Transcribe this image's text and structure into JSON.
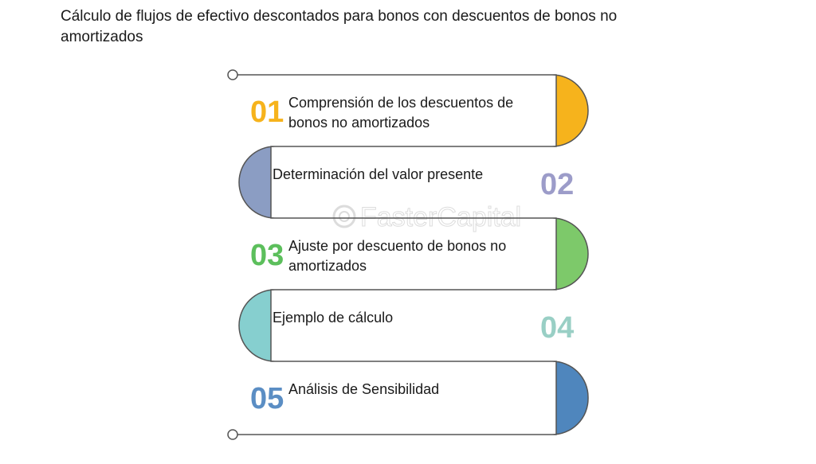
{
  "title": "Cálculo de flujos de efectivo descontados para bonos con descuentos de bonos no amortizados",
  "watermark": "FasterCapital",
  "steps": [
    {
      "number": "01",
      "lines": [
        "Comprensión de los descuentos de",
        "bonos no amortizados"
      ],
      "color": "#F6B31C"
    },
    {
      "number": "02",
      "lines": [
        "Determinación del valor presente"
      ],
      "color": "#8B9DC3"
    },
    {
      "number": "03",
      "lines": [
        "Ajuste por descuento de bonos no",
        "amortizados"
      ],
      "color": "#7DC96A"
    },
    {
      "number": "04",
      "lines": [
        "Ejemplo de cálculo"
      ],
      "color": "#86CFCF"
    },
    {
      "number": "05",
      "lines": [
        "Análisis de Sensibilidad"
      ],
      "color": "#4F86BD"
    }
  ],
  "number_colors": [
    "#F6B31C",
    "#9C9CC9",
    "#5CBF5C",
    "#99CFC5",
    "#5B8EC4"
  ]
}
